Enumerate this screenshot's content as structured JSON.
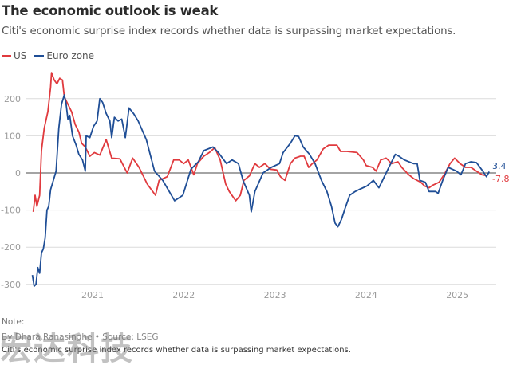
{
  "header": {
    "title": "The economic outlook is weak",
    "subtitle": "Citi's economic surprise index records whether data is surpassing market expectations."
  },
  "legend": [
    {
      "label": "US",
      "color": "#e03a3e"
    },
    {
      "label": "Euro zone",
      "color": "#1f4e96"
    }
  ],
  "footer": {
    "note": "Note:",
    "byline": "By Dhara Ranasinghe • Source: LSEG",
    "description": "Citi's economic surprise index records whether data is surpassing market expectations."
  },
  "watermark": "宏达科技",
  "chart_data": {
    "type": "line",
    "title": "The economic outlook is weak",
    "subtitle": "Citi's economic surprise index records whether data is surpassing market expectations.",
    "xlabel": "",
    "ylabel": "",
    "xlim": [
      2020.33,
      2025.35
    ],
    "ylim": [
      -300,
      270
    ],
    "yticks": [
      200,
      100,
      0,
      -100,
      -200,
      -300
    ],
    "ytick_labels": [
      "200",
      "100",
      "0",
      "-100",
      "-200",
      "-300"
    ],
    "xticks": [
      2021,
      2022,
      2023,
      2024,
      2025
    ],
    "xtick_labels": [
      "2021",
      "2022",
      "2023",
      "2024",
      "2025"
    ],
    "grid": true,
    "legend_position": "top-left",
    "end_labels": [
      {
        "series": "Euro zone",
        "text": "3.4",
        "value": 3.4
      },
      {
        "series": "US",
        "text": "-7.8",
        "value": -7.8
      }
    ],
    "series": [
      {
        "name": "US",
        "color": "#e03a3e",
        "points": [
          [
            2020.35,
            -105
          ],
          [
            2020.37,
            -60
          ],
          [
            2020.39,
            -90
          ],
          [
            2020.42,
            -60
          ],
          [
            2020.44,
            60
          ],
          [
            2020.47,
            120
          ],
          [
            2020.51,
            165
          ],
          [
            2020.54,
            230
          ],
          [
            2020.55,
            270
          ],
          [
            2020.58,
            250
          ],
          [
            2020.61,
            240
          ],
          [
            2020.64,
            255
          ],
          [
            2020.67,
            250
          ],
          [
            2020.69,
            205
          ],
          [
            2020.72,
            190
          ],
          [
            2020.77,
            165
          ],
          [
            2020.81,
            130
          ],
          [
            2020.85,
            110
          ],
          [
            2020.88,
            80
          ],
          [
            2020.92,
            70
          ],
          [
            2020.97,
            45
          ],
          [
            2021.02,
            55
          ],
          [
            2021.08,
            48
          ],
          [
            2021.15,
            90
          ],
          [
            2021.21,
            40
          ],
          [
            2021.3,
            38
          ],
          [
            2021.38,
            0
          ],
          [
            2021.44,
            40
          ],
          [
            2021.51,
            15
          ],
          [
            2021.6,
            -30
          ],
          [
            2021.69,
            -60
          ],
          [
            2021.73,
            -20
          ],
          [
            2021.82,
            -10
          ],
          [
            2021.89,
            35
          ],
          [
            2021.95,
            35
          ],
          [
            2022.0,
            25
          ],
          [
            2022.05,
            35
          ],
          [
            2022.11,
            -5
          ],
          [
            2022.15,
            25
          ],
          [
            2022.22,
            45
          ],
          [
            2022.28,
            55
          ],
          [
            2022.34,
            68
          ],
          [
            2022.4,
            35
          ],
          [
            2022.46,
            -30
          ],
          [
            2022.5,
            -50
          ],
          [
            2022.57,
            -75
          ],
          [
            2022.62,
            -60
          ],
          [
            2022.66,
            -20
          ],
          [
            2022.72,
            -8
          ],
          [
            2022.78,
            25
          ],
          [
            2022.83,
            15
          ],
          [
            2022.89,
            25
          ],
          [
            2022.95,
            10
          ],
          [
            2023.02,
            8
          ],
          [
            2023.06,
            -10
          ],
          [
            2023.11,
            -20
          ],
          [
            2023.17,
            25
          ],
          [
            2023.22,
            40
          ],
          [
            2023.28,
            45
          ],
          [
            2023.32,
            45
          ],
          [
            2023.37,
            15
          ],
          [
            2023.41,
            25
          ],
          [
            2023.46,
            35
          ],
          [
            2023.53,
            65
          ],
          [
            2023.59,
            75
          ],
          [
            2023.68,
            75
          ],
          [
            2023.72,
            58
          ],
          [
            2023.79,
            58
          ],
          [
            2023.9,
            55
          ],
          [
            2023.97,
            35
          ],
          [
            2024.0,
            20
          ],
          [
            2024.07,
            15
          ],
          [
            2024.11,
            5
          ],
          [
            2024.16,
            35
          ],
          [
            2024.22,
            40
          ],
          [
            2024.28,
            25
          ],
          [
            2024.35,
            30
          ],
          [
            2024.39,
            15
          ],
          [
            2024.46,
            -3
          ],
          [
            2024.52,
            -15
          ],
          [
            2024.6,
            -25
          ],
          [
            2024.64,
            -35
          ],
          [
            2024.69,
            -40
          ],
          [
            2024.73,
            -33
          ],
          [
            2024.8,
            -25
          ],
          [
            2024.86,
            -3
          ],
          [
            2024.92,
            25
          ],
          [
            2024.97,
            40
          ],
          [
            2025.03,
            25
          ],
          [
            2025.09,
            15
          ],
          [
            2025.15,
            15
          ],
          [
            2025.21,
            5
          ],
          [
            2025.27,
            -5
          ],
          [
            2025.33,
            -7.8
          ]
        ]
      },
      {
        "name": "Euro zone",
        "color": "#1f4e96",
        "points": [
          [
            2020.34,
            -275
          ],
          [
            2020.36,
            -305
          ],
          [
            2020.38,
            -300
          ],
          [
            2020.4,
            -255
          ],
          [
            2020.42,
            -270
          ],
          [
            2020.44,
            -215
          ],
          [
            2020.46,
            -205
          ],
          [
            2020.48,
            -175
          ],
          [
            2020.5,
            -100
          ],
          [
            2020.52,
            -90
          ],
          [
            2020.54,
            -45
          ],
          [
            2020.57,
            -20
          ],
          [
            2020.6,
            5
          ],
          [
            2020.63,
            120
          ],
          [
            2020.66,
            185
          ],
          [
            2020.69,
            210
          ],
          [
            2020.71,
            185
          ],
          [
            2020.73,
            145
          ],
          [
            2020.75,
            155
          ],
          [
            2020.78,
            100
          ],
          [
            2020.82,
            75
          ],
          [
            2020.85,
            50
          ],
          [
            2020.89,
            35
          ],
          [
            2020.92,
            5
          ],
          [
            2020.93,
            100
          ],
          [
            2020.97,
            95
          ],
          [
            2021.01,
            125
          ],
          [
            2021.05,
            140
          ],
          [
            2021.08,
            200
          ],
          [
            2021.11,
            190
          ],
          [
            2021.15,
            160
          ],
          [
            2021.19,
            140
          ],
          [
            2021.21,
            95
          ],
          [
            2021.24,
            150
          ],
          [
            2021.28,
            140
          ],
          [
            2021.32,
            145
          ],
          [
            2021.36,
            95
          ],
          [
            2021.4,
            175
          ],
          [
            2021.45,
            160
          ],
          [
            2021.5,
            140
          ],
          [
            2021.59,
            90
          ],
          [
            2021.68,
            5
          ],
          [
            2021.77,
            -20
          ],
          [
            2021.9,
            -75
          ],
          [
            2021.99,
            -60
          ],
          [
            2022.08,
            10
          ],
          [
            2022.16,
            30
          ],
          [
            2022.22,
            60
          ],
          [
            2022.32,
            70
          ],
          [
            2022.38,
            55
          ],
          [
            2022.47,
            25
          ],
          [
            2022.53,
            35
          ],
          [
            2022.6,
            25
          ],
          [
            2022.65,
            -20
          ],
          [
            2022.72,
            -60
          ],
          [
            2022.74,
            -105
          ],
          [
            2022.78,
            -50
          ],
          [
            2022.87,
            0
          ],
          [
            2022.96,
            15
          ],
          [
            2023.05,
            25
          ],
          [
            2023.09,
            55
          ],
          [
            2023.17,
            80
          ],
          [
            2023.22,
            100
          ],
          [
            2023.26,
            98
          ],
          [
            2023.31,
            70
          ],
          [
            2023.38,
            50
          ],
          [
            2023.44,
            25
          ],
          [
            2023.51,
            -20
          ],
          [
            2023.57,
            -50
          ],
          [
            2023.62,
            -90
          ],
          [
            2023.66,
            -135
          ],
          [
            2023.69,
            -145
          ],
          [
            2023.73,
            -125
          ],
          [
            2023.77,
            -95
          ],
          [
            2023.82,
            -60
          ],
          [
            2023.88,
            -50
          ],
          [
            2023.92,
            -45
          ],
          [
            2024.01,
            -35
          ],
          [
            2024.08,
            -20
          ],
          [
            2024.14,
            -40
          ],
          [
            2024.18,
            -20
          ],
          [
            2024.24,
            10
          ],
          [
            2024.32,
            50
          ],
          [
            2024.36,
            45
          ],
          [
            2024.42,
            35
          ],
          [
            2024.52,
            25
          ],
          [
            2024.56,
            25
          ],
          [
            2024.59,
            -20
          ],
          [
            2024.65,
            -25
          ],
          [
            2024.69,
            -50
          ],
          [
            2024.76,
            -50
          ],
          [
            2024.79,
            -55
          ],
          [
            2024.84,
            -20
          ],
          [
            2024.9,
            15
          ],
          [
            2024.99,
            5
          ],
          [
            2025.04,
            -5
          ],
          [
            2025.09,
            25
          ],
          [
            2025.15,
            30
          ],
          [
            2025.21,
            28
          ],
          [
            2025.28,
            5
          ],
          [
            2025.32,
            -10
          ],
          [
            2025.35,
            3.4
          ]
        ]
      }
    ]
  }
}
